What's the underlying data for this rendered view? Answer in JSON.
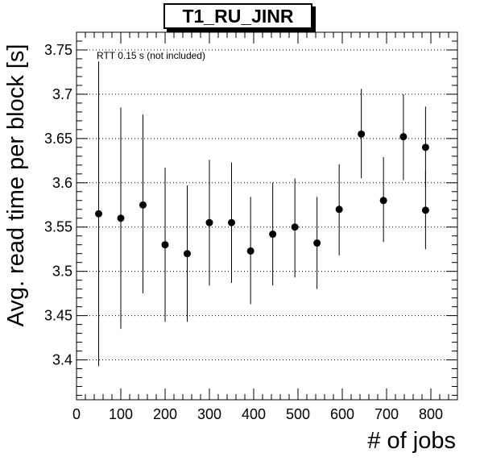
{
  "chart_data": {
    "type": "scatter",
    "title": "T1_RU_JINR",
    "xlabel": "# of jobs",
    "ylabel": "Avg. read time per block [s]",
    "annotation": "RTT 0.15 s (not included)",
    "xlim": [
      0,
      860
    ],
    "ylim": [
      3.355,
      3.77
    ],
    "x_ticks": [
      0,
      100,
      200,
      300,
      400,
      500,
      600,
      700,
      800
    ],
    "y_ticks": [
      3.4,
      3.45,
      3.5,
      3.55,
      3.6,
      3.65,
      3.7,
      3.75
    ],
    "grid": "horizontal dotted",
    "points": [
      {
        "x": 50,
        "y": 3.565,
        "ylow": 3.393,
        "yhigh": 3.737
      },
      {
        "x": 100,
        "y": 3.56,
        "ylow": 3.435,
        "yhigh": 3.685
      },
      {
        "x": 150,
        "y": 3.575,
        "ylow": 3.475,
        "yhigh": 3.677
      },
      {
        "x": 200,
        "y": 3.53,
        "ylow": 3.443,
        "yhigh": 3.617
      },
      {
        "x": 250,
        "y": 3.52,
        "ylow": 3.443,
        "yhigh": 3.597
      },
      {
        "x": 300,
        "y": 3.555,
        "ylow": 3.484,
        "yhigh": 3.626
      },
      {
        "x": 350,
        "y": 3.555,
        "ylow": 3.487,
        "yhigh": 3.623
      },
      {
        "x": 393,
        "y": 3.523,
        "ylow": 3.463,
        "yhigh": 3.584
      },
      {
        "x": 443,
        "y": 3.542,
        "ylow": 3.484,
        "yhigh": 3.6
      },
      {
        "x": 493,
        "y": 3.55,
        "ylow": 3.493,
        "yhigh": 3.605
      },
      {
        "x": 543,
        "y": 3.532,
        "ylow": 3.48,
        "yhigh": 3.584
      },
      {
        "x": 593,
        "y": 3.57,
        "ylow": 3.518,
        "yhigh": 3.621
      },
      {
        "x": 643,
        "y": 3.655,
        "ylow": 3.605,
        "yhigh": 3.706
      },
      {
        "x": 693,
        "y": 3.58,
        "ylow": 3.533,
        "yhigh": 3.629
      },
      {
        "x": 738,
        "y": 3.652,
        "ylow": 3.603,
        "yhigh": 3.7
      },
      {
        "x": 788,
        "y": 3.64,
        "ylow": 3.595,
        "yhigh": 3.686
      },
      {
        "x": 788,
        "y": 3.569,
        "ylow": 3.525,
        "yhigh": 3.613
      }
    ]
  },
  "colors": {
    "marker": "#000000",
    "grid": "#000000",
    "axis": "#000000"
  }
}
